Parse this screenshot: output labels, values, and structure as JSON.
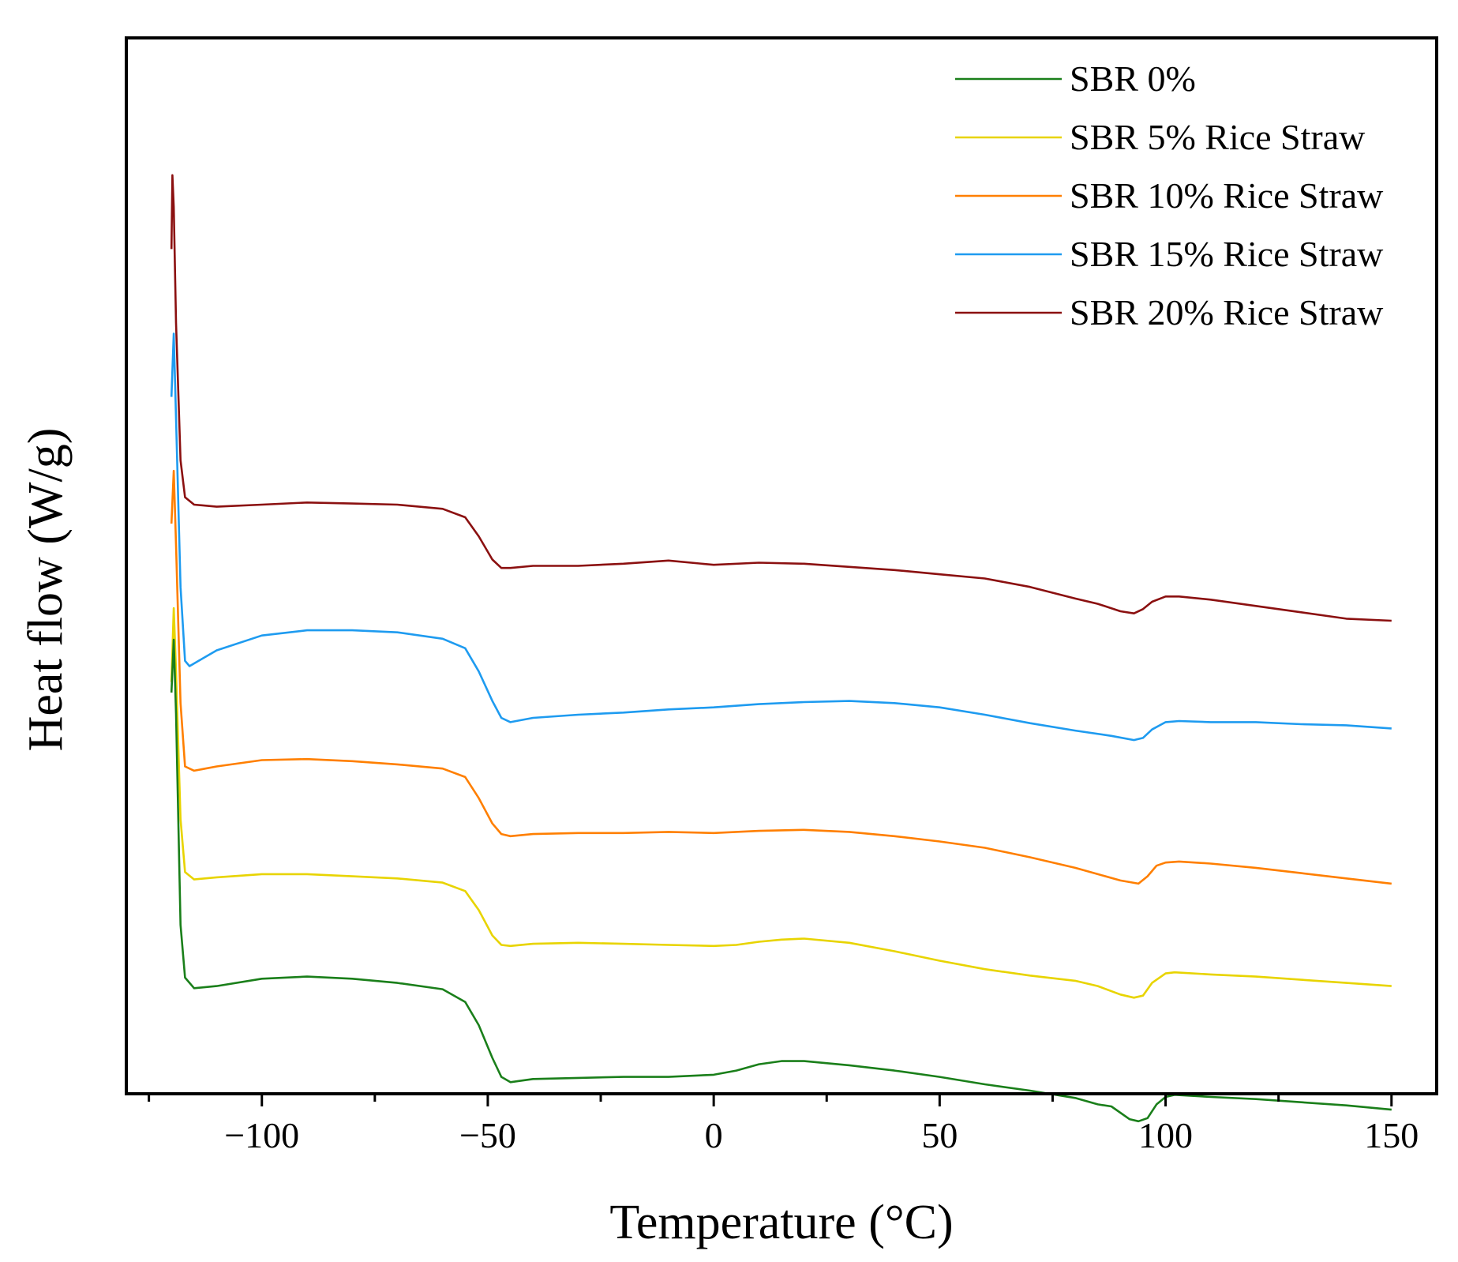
{
  "chart_data": {
    "type": "line",
    "title": "",
    "xlabel": "Temperature (°C)",
    "ylabel": "Heat flow (W/g)",
    "xlim": [
      -130,
      160
    ],
    "ylim": [
      0,
      100
    ],
    "x_ticks": [
      -100,
      -50,
      0,
      50,
      100,
      150
    ],
    "x_tick_labels": [
      "−100",
      "−50",
      "0",
      "50",
      "100",
      "150"
    ],
    "y_ticks_shown": false,
    "grid": false,
    "legend_position": "top-right",
    "series": [
      {
        "name": "SBR 0%",
        "color": "#1a7f1a",
        "points": [
          [
            -120,
            38
          ],
          [
            -119.5,
            43
          ],
          [
            -119,
            36
          ],
          [
            -118,
            16
          ],
          [
            -117,
            11
          ],
          [
            -115,
            10
          ],
          [
            -110,
            10.2
          ],
          [
            -100,
            10.9
          ],
          [
            -90,
            11.1
          ],
          [
            -80,
            10.9
          ],
          [
            -70,
            10.5
          ],
          [
            -60,
            9.9
          ],
          [
            -55,
            8.7
          ],
          [
            -52,
            6.5
          ],
          [
            -49,
            3.4
          ],
          [
            -47,
            1.6
          ],
          [
            -45,
            1.1
          ],
          [
            -40,
            1.4
          ],
          [
            -30,
            1.5
          ],
          [
            -20,
            1.6
          ],
          [
            -10,
            1.6
          ],
          [
            0,
            1.8
          ],
          [
            5,
            2.2
          ],
          [
            10,
            2.8
          ],
          [
            15,
            3.1
          ],
          [
            20,
            3.1
          ],
          [
            30,
            2.7
          ],
          [
            40,
            2.2
          ],
          [
            50,
            1.6
          ],
          [
            60,
            0.9
          ],
          [
            70,
            0.3
          ],
          [
            80,
            -0.4
          ],
          [
            85,
            -1.0
          ],
          [
            88,
            -1.2
          ],
          [
            92,
            -2.4
          ],
          [
            94,
            -2.6
          ],
          [
            96,
            -2.3
          ],
          [
            98,
            -1.0
          ],
          [
            100,
            -0.3
          ],
          [
            102,
            -0.1
          ],
          [
            110,
            -0.3
          ],
          [
            120,
            -0.5
          ],
          [
            130,
            -0.8
          ],
          [
            140,
            -1.1
          ],
          [
            150,
            -1.5
          ]
        ]
      },
      {
        "name": "SBR 5% Rice Straw",
        "color": "#e8d400",
        "points": [
          [
            -120,
            39
          ],
          [
            -119.5,
            46
          ],
          [
            -119,
            40
          ],
          [
            -118,
            26
          ],
          [
            -117,
            21
          ],
          [
            -115,
            20.3
          ],
          [
            -110,
            20.5
          ],
          [
            -100,
            20.8
          ],
          [
            -90,
            20.8
          ],
          [
            -80,
            20.6
          ],
          [
            -70,
            20.4
          ],
          [
            -60,
            20.0
          ],
          [
            -55,
            19.2
          ],
          [
            -52,
            17.4
          ],
          [
            -49,
            15.0
          ],
          [
            -47,
            14.1
          ],
          [
            -45,
            14.0
          ],
          [
            -40,
            14.2
          ],
          [
            -30,
            14.3
          ],
          [
            -20,
            14.2
          ],
          [
            -10,
            14.1
          ],
          [
            0,
            14.0
          ],
          [
            5,
            14.1
          ],
          [
            10,
            14.4
          ],
          [
            15,
            14.6
          ],
          [
            20,
            14.7
          ],
          [
            30,
            14.3
          ],
          [
            40,
            13.5
          ],
          [
            50,
            12.6
          ],
          [
            60,
            11.8
          ],
          [
            70,
            11.2
          ],
          [
            80,
            10.7
          ],
          [
            85,
            10.2
          ],
          [
            90,
            9.4
          ],
          [
            93,
            9.1
          ],
          [
            95,
            9.3
          ],
          [
            97,
            10.5
          ],
          [
            100,
            11.4
          ],
          [
            102,
            11.5
          ],
          [
            110,
            11.3
          ],
          [
            120,
            11.1
          ],
          [
            130,
            10.8
          ],
          [
            140,
            10.5
          ],
          [
            150,
            10.2
          ]
        ]
      },
      {
        "name": "SBR 10% Rice Straw",
        "color": "#ff7f00",
        "points": [
          [
            -120,
            54
          ],
          [
            -119.5,
            59
          ],
          [
            -119,
            52
          ],
          [
            -118,
            37
          ],
          [
            -117,
            31
          ],
          [
            -115,
            30.6
          ],
          [
            -110,
            31.0
          ],
          [
            -100,
            31.6
          ],
          [
            -90,
            31.7
          ],
          [
            -80,
            31.5
          ],
          [
            -70,
            31.2
          ],
          [
            -60,
            30.8
          ],
          [
            -55,
            30.0
          ],
          [
            -52,
            28.0
          ],
          [
            -49,
            25.6
          ],
          [
            -47,
            24.6
          ],
          [
            -45,
            24.4
          ],
          [
            -40,
            24.6
          ],
          [
            -30,
            24.7
          ],
          [
            -20,
            24.7
          ],
          [
            -10,
            24.8
          ],
          [
            0,
            24.7
          ],
          [
            5,
            24.8
          ],
          [
            10,
            24.9
          ],
          [
            20,
            25.0
          ],
          [
            30,
            24.8
          ],
          [
            40,
            24.4
          ],
          [
            50,
            23.9
          ],
          [
            60,
            23.3
          ],
          [
            70,
            22.4
          ],
          [
            80,
            21.4
          ],
          [
            85,
            20.8
          ],
          [
            90,
            20.2
          ],
          [
            94,
            19.9
          ],
          [
            96,
            20.6
          ],
          [
            98,
            21.6
          ],
          [
            100,
            21.9
          ],
          [
            103,
            22.0
          ],
          [
            110,
            21.8
          ],
          [
            120,
            21.4
          ],
          [
            130,
            20.9
          ],
          [
            140,
            20.4
          ],
          [
            150,
            19.9
          ]
        ]
      },
      {
        "name": "SBR 15% Rice Straw",
        "color": "#1e9bf0",
        "points": [
          [
            -120,
            66
          ],
          [
            -119.5,
            72
          ],
          [
            -119,
            64
          ],
          [
            -118,
            48
          ],
          [
            -117,
            41
          ],
          [
            -116,
            40.5
          ],
          [
            -114,
            41.0
          ],
          [
            -110,
            42.0
          ],
          [
            -100,
            43.4
          ],
          [
            -90,
            43.9
          ],
          [
            -80,
            43.9
          ],
          [
            -70,
            43.7
          ],
          [
            -60,
            43.1
          ],
          [
            -55,
            42.2
          ],
          [
            -52,
            40.0
          ],
          [
            -49,
            37.2
          ],
          [
            -47,
            35.6
          ],
          [
            -45,
            35.2
          ],
          [
            -40,
            35.6
          ],
          [
            -30,
            35.9
          ],
          [
            -20,
            36.1
          ],
          [
            -10,
            36.4
          ],
          [
            0,
            36.6
          ],
          [
            10,
            36.9
          ],
          [
            20,
            37.1
          ],
          [
            30,
            37.2
          ],
          [
            40,
            37.0
          ],
          [
            50,
            36.6
          ],
          [
            60,
            35.9
          ],
          [
            70,
            35.1
          ],
          [
            80,
            34.4
          ],
          [
            88,
            33.9
          ],
          [
            93,
            33.5
          ],
          [
            95,
            33.7
          ],
          [
            97,
            34.5
          ],
          [
            100,
            35.2
          ],
          [
            103,
            35.3
          ],
          [
            110,
            35.2
          ],
          [
            120,
            35.2
          ],
          [
            130,
            35.0
          ],
          [
            140,
            34.9
          ],
          [
            150,
            34.6
          ]
        ]
      },
      {
        "name": "SBR 20% Rice Straw",
        "color": "#8b1010",
        "points": [
          [
            -120,
            80
          ],
          [
            -119.8,
            87
          ],
          [
            -119.5,
            84
          ],
          [
            -119,
            73
          ],
          [
            -118,
            60
          ],
          [
            -117,
            56.5
          ],
          [
            -115,
            55.8
          ],
          [
            -110,
            55.6
          ],
          [
            -100,
            55.8
          ],
          [
            -90,
            56.0
          ],
          [
            -80,
            55.9
          ],
          [
            -70,
            55.8
          ],
          [
            -60,
            55.4
          ],
          [
            -55,
            54.6
          ],
          [
            -52,
            52.8
          ],
          [
            -49,
            50.6
          ],
          [
            -47,
            49.8
          ],
          [
            -45,
            49.8
          ],
          [
            -40,
            50.0
          ],
          [
            -30,
            50.0
          ],
          [
            -20,
            50.2
          ],
          [
            -10,
            50.5
          ],
          [
            0,
            50.1
          ],
          [
            10,
            50.3
          ],
          [
            20,
            50.2
          ],
          [
            30,
            49.9
          ],
          [
            40,
            49.6
          ],
          [
            50,
            49.2
          ],
          [
            60,
            48.8
          ],
          [
            70,
            48.0
          ],
          [
            80,
            46.9
          ],
          [
            85,
            46.4
          ],
          [
            90,
            45.7
          ],
          [
            93,
            45.5
          ],
          [
            95,
            45.9
          ],
          [
            97,
            46.6
          ],
          [
            100,
            47.1
          ],
          [
            103,
            47.1
          ],
          [
            110,
            46.8
          ],
          [
            120,
            46.2
          ],
          [
            130,
            45.6
          ],
          [
            140,
            45.0
          ],
          [
            150,
            44.8
          ]
        ]
      }
    ]
  }
}
